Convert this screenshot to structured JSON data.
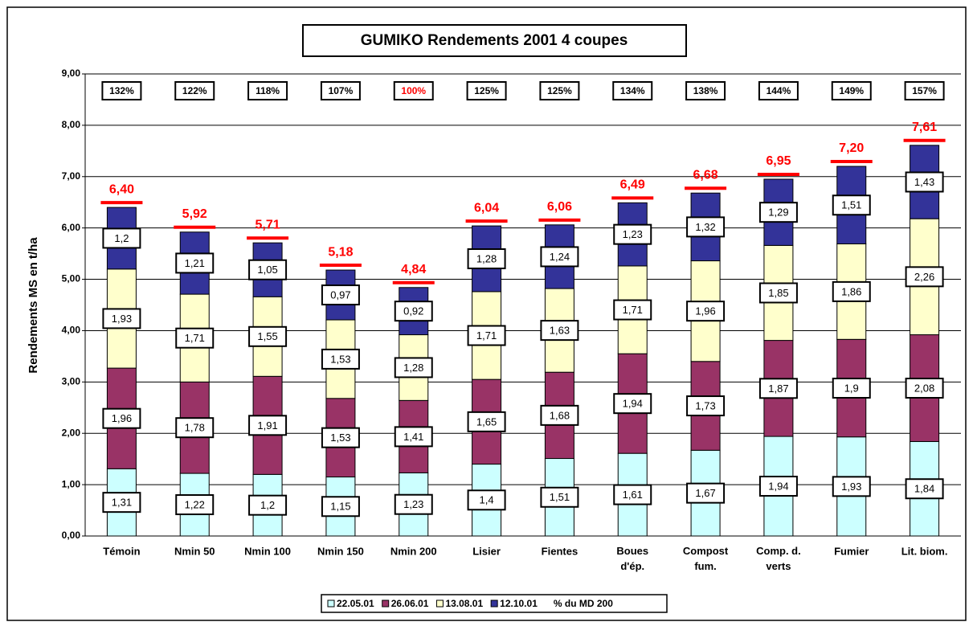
{
  "chart_data": {
    "type": "bar",
    "stacked": true,
    "title": "GUMIKO   Rendements 2001   4 coupes",
    "ylabel": "Rendements MS en t/ha",
    "categories": [
      "Témoin",
      "Nmin 50",
      "Nmin 100",
      "Nmin 150",
      "Nmin 200",
      "Lisier",
      "Fientes",
      "Boues d'ép.",
      "Compost fum.",
      "Comp. d. verts",
      "Fumier",
      "Lit. biom."
    ],
    "series": [
      {
        "name": "22.05.01",
        "color": "#ccffff",
        "values": [
          1.31,
          1.22,
          1.2,
          1.15,
          1.23,
          1.4,
          1.51,
          1.61,
          1.67,
          1.94,
          1.93,
          1.84
        ],
        "value_labels": [
          "1,31",
          "1,22",
          "1,2",
          "1,15",
          "1,23",
          "1,4",
          "1,51",
          "1,61",
          "1,67",
          "1,94",
          "1,93",
          "1,84"
        ]
      },
      {
        "name": "26.06.01",
        "color": "#993366",
        "values": [
          1.96,
          1.78,
          1.91,
          1.53,
          1.41,
          1.65,
          1.68,
          1.94,
          1.73,
          1.87,
          1.9,
          2.08
        ],
        "value_labels": [
          "1,96",
          "1,78",
          "1,91",
          "1,53",
          "1,41",
          "1,65",
          "1,68",
          "1,94",
          "1,73",
          "1,87",
          "1,9",
          "2,08"
        ]
      },
      {
        "name": "13.08.01",
        "color": "#ffffcc",
        "values": [
          1.93,
          1.71,
          1.55,
          1.53,
          1.28,
          1.71,
          1.63,
          1.71,
          1.96,
          1.85,
          1.86,
          2.26
        ],
        "value_labels": [
          "1,93",
          "1,71",
          "1,55",
          "1,53",
          "1,28",
          "1,71",
          "1,63",
          "1,71",
          "1,96",
          "1,85",
          "1,86",
          "2,26"
        ]
      },
      {
        "name": "12.10.01",
        "color": "#333399",
        "values": [
          1.2,
          1.21,
          1.05,
          0.97,
          0.92,
          1.28,
          1.24,
          1.23,
          1.32,
          1.29,
          1.51,
          1.43
        ],
        "value_labels": [
          "1,2",
          "1,21",
          "1,05",
          "0,97",
          "0,92",
          "1,28",
          "1,24",
          "1,23",
          "1,32",
          "1,29",
          "1,51",
          "1,43"
        ]
      }
    ],
    "totals": {
      "color": "#ff0000",
      "values": [
        6.4,
        5.92,
        5.71,
        5.18,
        4.84,
        6.04,
        6.06,
        6.49,
        6.68,
        6.95,
        7.2,
        7.61
      ],
      "value_labels": [
        "6,40",
        "5,92",
        "5,71",
        "5,18",
        "4,84",
        "6,04",
        "6,06",
        "6,49",
        "6,68",
        "6,95",
        "7,20",
        "7,61"
      ]
    },
    "percent_series": {
      "name": "% du MD 200",
      "values": [
        132,
        122,
        118,
        107,
        100,
        125,
        125,
        134,
        138,
        144,
        149,
        157
      ],
      "value_labels": [
        "132%",
        "122%",
        "118%",
        "107%",
        "100%",
        "125%",
        "125%",
        "134%",
        "138%",
        "144%",
        "149%",
        "157%"
      ],
      "colors": [
        "#000000",
        "#000000",
        "#000000",
        "#000000",
        "#ff0000",
        "#000000",
        "#000000",
        "#000000",
        "#000000",
        "#000000",
        "#000000",
        "#000000"
      ]
    },
    "ylim": [
      0,
      9
    ],
    "yticks": [
      {
        "value": 0,
        "label": "0,00"
      },
      {
        "value": 1,
        "label": "1,00"
      },
      {
        "value": 2,
        "label": "2,00"
      },
      {
        "value": 3,
        "label": "3,00"
      },
      {
        "value": 4,
        "label": "4,00"
      },
      {
        "value": 5,
        "label": "5,00"
      },
      {
        "value": 6,
        "label": "6,00"
      },
      {
        "value": 7,
        "label": "7,00"
      },
      {
        "value": 8,
        "label": "8,00"
      },
      {
        "value": 9,
        "label": "9,00"
      }
    ],
    "grid": true,
    "legend": "bottom"
  }
}
